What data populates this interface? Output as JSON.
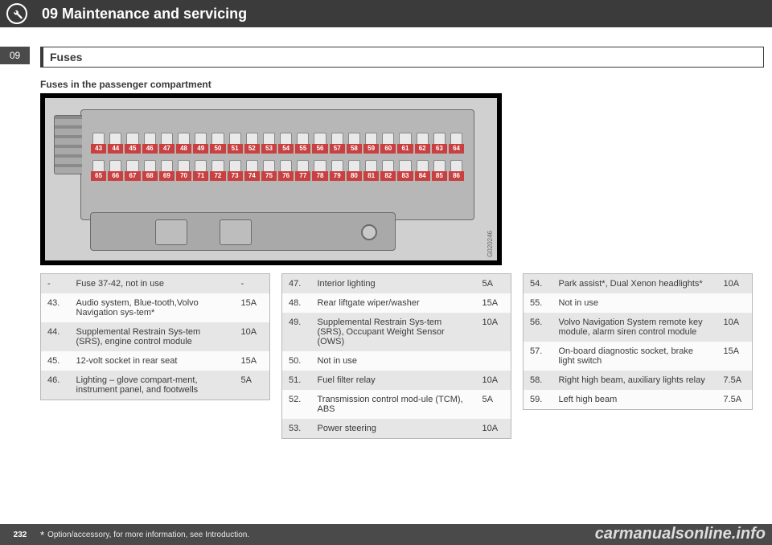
{
  "header": {
    "chapter": "09 Maintenance and servicing",
    "tab": "09",
    "section": "Fuses",
    "subheading": "Fuses in the passenger compartment"
  },
  "diagram": {
    "row_top": [
      "43",
      "44",
      "45",
      "46",
      "47",
      "48",
      "49",
      "50",
      "51",
      "52",
      "53",
      "54",
      "55",
      "56",
      "57",
      "58",
      "59",
      "60",
      "61",
      "62",
      "63",
      "64"
    ],
    "row_bottom": [
      "65",
      "66",
      "67",
      "68",
      "69",
      "70",
      "71",
      "72",
      "73",
      "74",
      "75",
      "76",
      "77",
      "78",
      "79",
      "80",
      "81",
      "82",
      "83",
      "84",
      "85",
      "86"
    ],
    "label_color": "#c84040",
    "gcode": "G020246"
  },
  "tables": {
    "col1": [
      {
        "n": "-",
        "desc": "Fuse 37-42, not in use",
        "a": "-"
      },
      {
        "n": "43.",
        "desc": "Audio system, Blue-tooth,Volvo Navigation sys-tem*",
        "a": "15A"
      },
      {
        "n": "44.",
        "desc": "Supplemental Restrain Sys-tem (SRS), engine control module",
        "a": "10A"
      },
      {
        "n": "45.",
        "desc": "12-volt socket in rear seat",
        "a": "15A"
      },
      {
        "n": "46.",
        "desc": "Lighting – glove compart-ment, instrument panel, and footwells",
        "a": "5A"
      }
    ],
    "col2": [
      {
        "n": "47.",
        "desc": "Interior lighting",
        "a": "5A"
      },
      {
        "n": "48.",
        "desc": "Rear liftgate wiper/washer",
        "a": "15A"
      },
      {
        "n": "49.",
        "desc": "Supplemental Restrain Sys-tem (SRS), Occupant Weight Sensor (OWS)",
        "a": "10A"
      },
      {
        "n": "50.",
        "desc": "Not in use",
        "a": ""
      },
      {
        "n": "51.",
        "desc": "Fuel filter relay",
        "a": "10A"
      },
      {
        "n": "52.",
        "desc": "Transmission control mod-ule (TCM), ABS",
        "a": "5A"
      },
      {
        "n": "53.",
        "desc": "Power steering",
        "a": "10A"
      }
    ],
    "col3": [
      {
        "n": "54.",
        "desc": "Park assist*, Dual Xenon headlights*",
        "a": "10A"
      },
      {
        "n": "55.",
        "desc": "Not in use",
        "a": ""
      },
      {
        "n": "56.",
        "desc": "Volvo Navigation System remote key module, alarm siren control module",
        "a": "10A"
      },
      {
        "n": "57.",
        "desc": "On-board diagnostic socket, brake light switch",
        "a": "15A"
      },
      {
        "n": "58.",
        "desc": "Right high beam, auxiliary lights relay",
        "a": "7.5A"
      },
      {
        "n": "59.",
        "desc": "Left high beam",
        "a": "7.5A"
      }
    ]
  },
  "footer": {
    "page": "232",
    "star": "*",
    "note": "Option/accessory, for more information, see Introduction."
  },
  "watermark": "carmanualsonline.info"
}
